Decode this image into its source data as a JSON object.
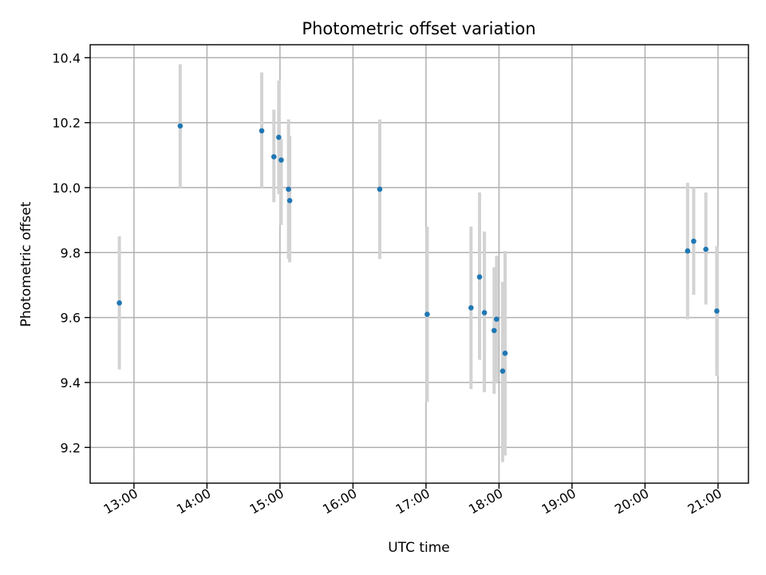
{
  "chart_data": {
    "type": "scatter",
    "title": "Photometric offset variation",
    "xlabel": "UTC time",
    "ylabel": "Photometric offset",
    "xlim": [
      "12:24",
      "21:25"
    ],
    "ylim": [
      9.09,
      10.44
    ],
    "grid": true,
    "x_ticks": [
      "13:00",
      "14:00",
      "15:00",
      "16:00",
      "17:00",
      "18:00",
      "19:00",
      "20:00",
      "21:00"
    ],
    "y_ticks": [
      "9.2",
      "9.4",
      "9.6",
      "9.8",
      "10.0",
      "10.2",
      "10.4"
    ],
    "point_color": "#1f77b4",
    "errorbar_color": "#d3d3d3",
    "points": [
      {
        "x": "12:48",
        "y": 9.645,
        "yerr_low": 9.44,
        "yerr_high": 9.85
      },
      {
        "x": "13:38",
        "y": 10.19,
        "yerr_low": 10.0,
        "yerr_high": 10.38
      },
      {
        "x": "14:45",
        "y": 10.175,
        "yerr_low": 10.0,
        "yerr_high": 10.355
      },
      {
        "x": "14:55",
        "y": 10.095,
        "yerr_low": 9.955,
        "yerr_high": 10.24
      },
      {
        "x": "14:59",
        "y": 10.155,
        "yerr_low": 9.98,
        "yerr_high": 10.33
      },
      {
        "x": "15:01",
        "y": 10.085,
        "yerr_low": 9.885,
        "yerr_high": 10.15
      },
      {
        "x": "15:07",
        "y": 9.995,
        "yerr_low": 9.78,
        "yerr_high": 10.21
      },
      {
        "x": "15:08",
        "y": 9.96,
        "yerr_low": 9.77,
        "yerr_high": 10.16
      },
      {
        "x": "16:22",
        "y": 9.995,
        "yerr_low": 9.78,
        "yerr_high": 10.21
      },
      {
        "x": "17:01",
        "y": 9.61,
        "yerr_low": 9.34,
        "yerr_high": 9.88
      },
      {
        "x": "17:37",
        "y": 9.63,
        "yerr_low": 9.38,
        "yerr_high": 9.88
      },
      {
        "x": "17:44",
        "y": 9.725,
        "yerr_low": 9.47,
        "yerr_high": 9.985
      },
      {
        "x": "17:48",
        "y": 9.615,
        "yerr_low": 9.37,
        "yerr_high": 9.865
      },
      {
        "x": "17:56",
        "y": 9.56,
        "yerr_low": 9.365,
        "yerr_high": 9.755
      },
      {
        "x": "17:58",
        "y": 9.595,
        "yerr_low": 9.4,
        "yerr_high": 9.79
      },
      {
        "x": "18:03",
        "y": 9.435,
        "yerr_low": 9.155,
        "yerr_high": 9.71
      },
      {
        "x": "18:05",
        "y": 9.49,
        "yerr_low": 9.175,
        "yerr_high": 9.805
      },
      {
        "x": "20:35",
        "y": 9.805,
        "yerr_low": 9.595,
        "yerr_high": 10.015
      },
      {
        "x": "20:40",
        "y": 9.835,
        "yerr_low": 9.67,
        "yerr_high": 10.0
      },
      {
        "x": "20:50",
        "y": 9.81,
        "yerr_low": 9.64,
        "yerr_high": 9.985
      },
      {
        "x": "20:59",
        "y": 9.62,
        "yerr_low": 9.42,
        "yerr_high": 9.82
      }
    ]
  }
}
